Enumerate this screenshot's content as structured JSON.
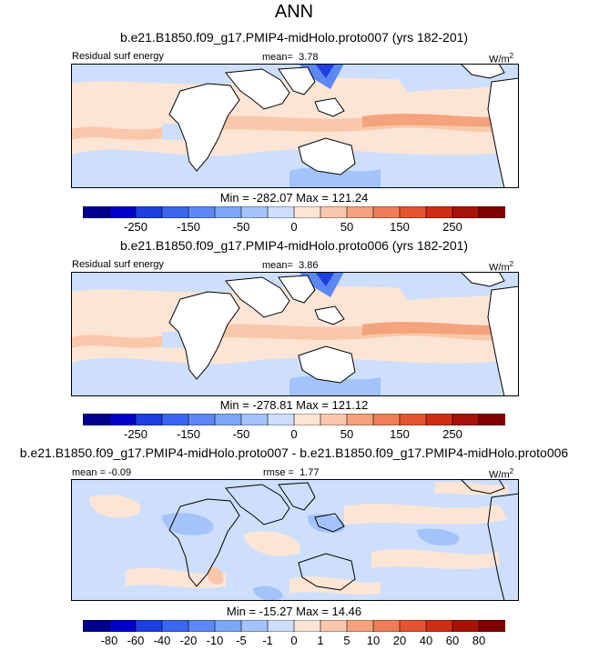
{
  "title": "ANN",
  "chart_data": [
    {
      "type": "heatmap",
      "title": "b.e21.B1850.f09_g17.PMIP4-midHolo.proto007 (yrs 182-201)",
      "variable": "Residual surf energy",
      "mean_label": "mean=",
      "mean": "3.78",
      "units_base": "W/m",
      "units_exp": "2",
      "min_max": "Min = -282.07 Max = 121.24",
      "colorbar_levels": [
        "-250",
        "-150",
        "-50",
        "0",
        "50",
        "150",
        "250"
      ],
      "colors": [
        "#00008b",
        "#0000c8",
        "#1c3fe0",
        "#3a66f0",
        "#5b88f5",
        "#7ca7f7",
        "#a3c3fa",
        "#cddffc",
        "#fde5d5",
        "#f9c7ab",
        "#f4a37d",
        "#ee7e57",
        "#e4562f",
        "#cf2e14",
        "#a81207",
        "#800000"
      ]
    },
    {
      "type": "heatmap",
      "title": "b.e21.B1850.f09_g17.PMIP4-midHolo.proto006 (yrs 182-201)",
      "variable": "Residual surf energy",
      "mean_label": "mean=",
      "mean": "3.86",
      "units_base": "W/m",
      "units_exp": "2",
      "min_max": "Min = -278.81 Max = 121.12",
      "colorbar_levels": [
        "-250",
        "-150",
        "-50",
        "0",
        "50",
        "150",
        "250"
      ],
      "colors": [
        "#00008b",
        "#0000c8",
        "#1c3fe0",
        "#3a66f0",
        "#5b88f5",
        "#7ca7f7",
        "#a3c3fa",
        "#cddffc",
        "#fde5d5",
        "#f9c7ab",
        "#f4a37d",
        "#ee7e57",
        "#e4562f",
        "#cf2e14",
        "#a81207",
        "#800000"
      ]
    },
    {
      "type": "heatmap",
      "title": "b.e21.B1850.f09_g17.PMIP4-midHolo.proto007 - b.e21.B1850.f09_g17.PMIP4-midHolo.proto006",
      "mean_label": "mean =",
      "mean": "-0.09",
      "rmse_label": "rmse =",
      "rmse": "1.77",
      "units_base": "W/m",
      "units_exp": "2",
      "min_max": "Min = -15.27 Max =  14.46",
      "colorbar_levels": [
        "-80",
        "-60",
        "-40",
        "-20",
        "-10",
        "-5",
        "-1",
        "0",
        "1",
        "5",
        "10",
        "20",
        "40",
        "60",
        "80"
      ],
      "colors": [
        "#00008b",
        "#0000c8",
        "#1c3fe0",
        "#3a66f0",
        "#5b88f5",
        "#7ca7f7",
        "#a3c3fa",
        "#cddffc",
        "#fde5d5",
        "#f9c7ab",
        "#f4a37d",
        "#ee7e57",
        "#e4562f",
        "#cf2e14",
        "#a81207",
        "#800000"
      ]
    }
  ]
}
